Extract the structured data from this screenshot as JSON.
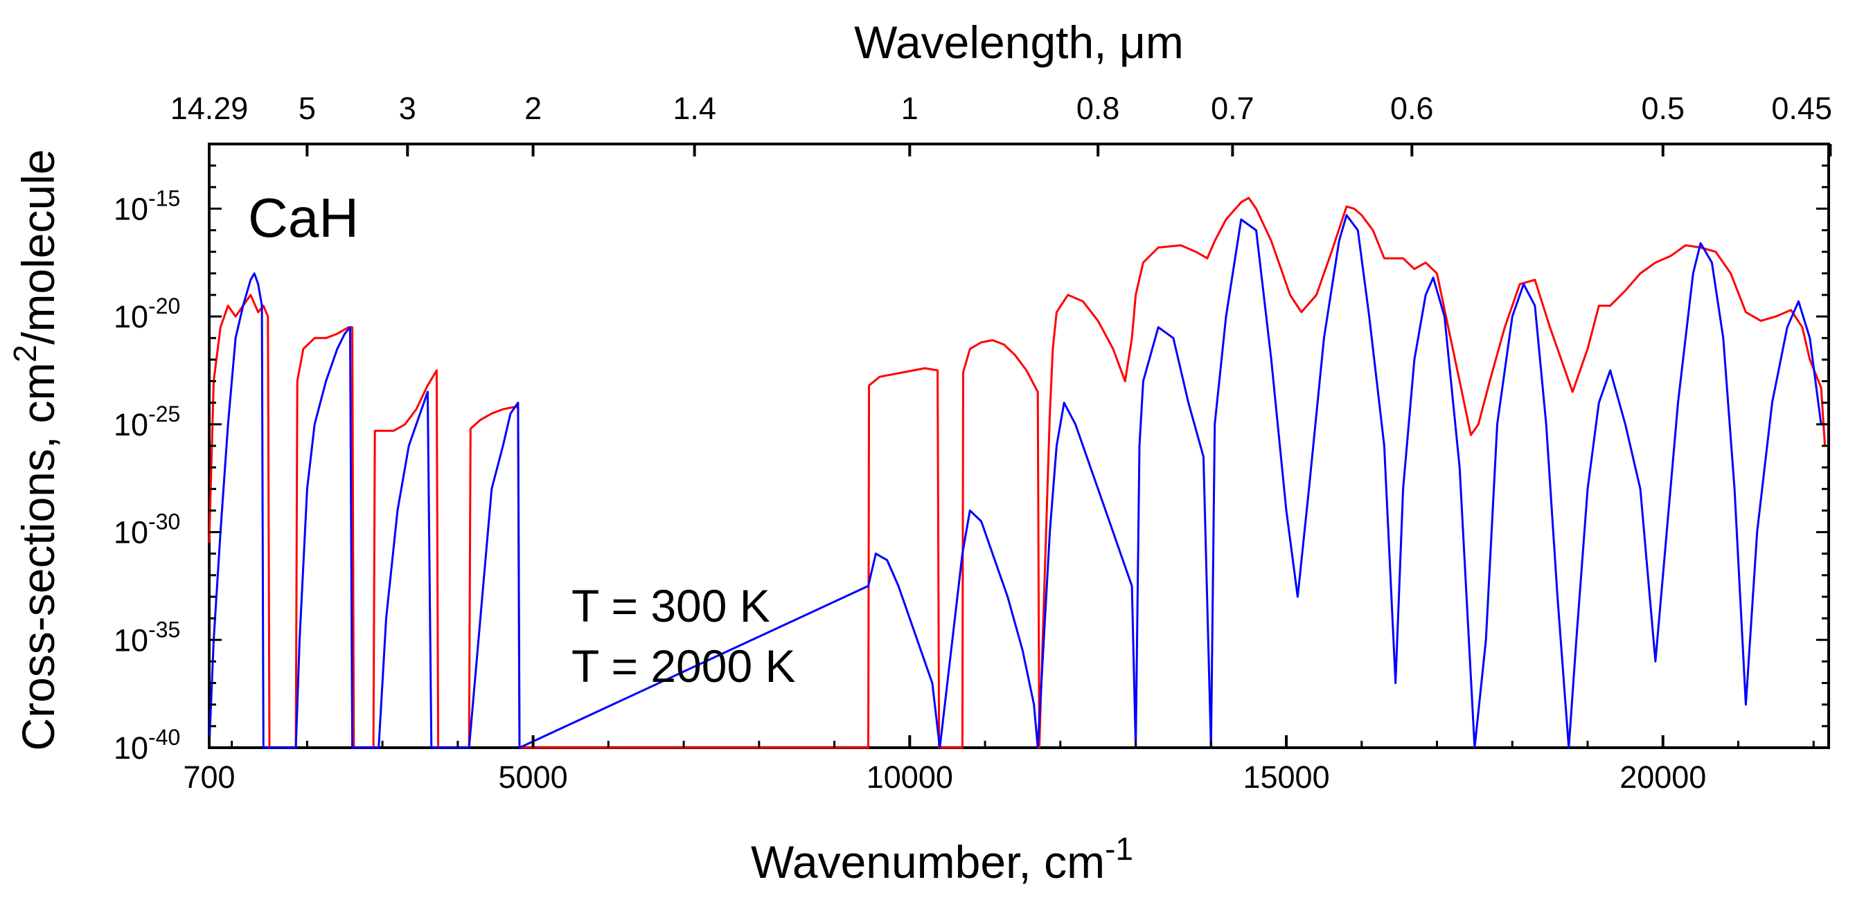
{
  "chart_data": {
    "type": "line",
    "title": "",
    "molecule_label": "CaH",
    "xlabel": {
      "base": "Wavenumber, cm",
      "sup": "-1"
    },
    "ylabel": {
      "base": "Cross-sections, cm",
      "sup": "2",
      "rest": "/molecule"
    },
    "top_xlabel": "Wavelength, μm",
    "grid": false,
    "legend_position": "center-left",
    "x_axis": {
      "lim": [
        700,
        22200
      ],
      "ticks": [
        {
          "value": 700,
          "label": "700"
        },
        {
          "value": 5000,
          "label": "5000"
        },
        {
          "value": 10000,
          "label": "10000"
        },
        {
          "value": 15000,
          "label": "15000"
        },
        {
          "value": 20000,
          "label": "20000"
        }
      ]
    },
    "top_axis": {
      "ticks": [
        {
          "value": 700,
          "label": "14.29"
        },
        {
          "value": 2000,
          "label": "5"
        },
        {
          "value": 3333,
          "label": "3"
        },
        {
          "value": 5000,
          "label": "2"
        },
        {
          "value": 7143,
          "label": "1.4"
        },
        {
          "value": 10000,
          "label": "1"
        },
        {
          "value": 12500,
          "label": "0.8"
        },
        {
          "value": 14286,
          "label": "0.7"
        },
        {
          "value": 16667,
          "label": "0.6"
        },
        {
          "value": 20000,
          "label": "0.5"
        },
        {
          "value": 22222,
          "label": "0.45"
        }
      ]
    },
    "y_axis": {
      "scale": "log",
      "lim_exp": [
        -40,
        -12
      ],
      "ticks": [
        {
          "exp": -15,
          "label": "10",
          "sup": "-15"
        },
        {
          "exp": -20,
          "label": "10",
          "sup": "-20"
        },
        {
          "exp": -25,
          "label": "10",
          "sup": "-25"
        },
        {
          "exp": -30,
          "label": "10",
          "sup": "-30"
        },
        {
          "exp": -35,
          "label": "10",
          "sup": "-35"
        },
        {
          "exp": -40,
          "label": "10",
          "sup": "-40"
        }
      ]
    },
    "series": [
      {
        "name": "T = 2000 K",
        "color": "#ff0000",
        "points": [
          [
            700,
            -30.5
          ],
          [
            760,
            -23
          ],
          [
            850,
            -20.5
          ],
          [
            950,
            -19.5
          ],
          [
            1050,
            -20
          ],
          [
            1150,
            -19.5
          ],
          [
            1250,
            -19
          ],
          [
            1350,
            -19.8
          ],
          [
            1420,
            -19.5
          ],
          [
            1480,
            -20
          ],
          [
            1500,
            -40
          ],
          [
            1850,
            -40
          ],
          [
            1870,
            -23
          ],
          [
            1950,
            -21.5
          ],
          [
            2100,
            -21
          ],
          [
            2250,
            -21
          ],
          [
            2400,
            -20.8
          ],
          [
            2550,
            -20.5
          ],
          [
            2600,
            -20.5
          ],
          [
            2620,
            -40
          ],
          [
            2880,
            -40
          ],
          [
            2900,
            -25.3
          ],
          [
            3000,
            -25.3
          ],
          [
            3150,
            -25.3
          ],
          [
            3300,
            -25
          ],
          [
            3450,
            -24.3
          ],
          [
            3600,
            -23.2
          ],
          [
            3720,
            -22.5
          ],
          [
            3740,
            -40
          ],
          [
            4150,
            -40
          ],
          [
            4170,
            -25.2
          ],
          [
            4300,
            -24.8
          ],
          [
            4450,
            -24.5
          ],
          [
            4600,
            -24.3
          ],
          [
            4750,
            -24.2
          ],
          [
            4800,
            -24.2
          ],
          [
            4820,
            -40
          ],
          [
            9450,
            -40
          ],
          [
            9460,
            -23.2
          ],
          [
            9600,
            -22.8
          ],
          [
            9750,
            -22.7
          ],
          [
            9900,
            -22.6
          ],
          [
            10050,
            -22.5
          ],
          [
            10200,
            -22.4
          ],
          [
            10370,
            -22.5
          ],
          [
            10390,
            -40
          ],
          [
            10700,
            -40
          ],
          [
            10710,
            -22.6
          ],
          [
            10800,
            -21.5
          ],
          [
            10950,
            -21.2
          ],
          [
            11100,
            -21.1
          ],
          [
            11250,
            -21.3
          ],
          [
            11400,
            -21.8
          ],
          [
            11550,
            -22.5
          ],
          [
            11700,
            -23.5
          ],
          [
            11720,
            -40
          ],
          [
            11860,
            -24.5
          ],
          [
            11900,
            -21.5
          ],
          [
            11950,
            -19.8
          ],
          [
            12100,
            -19
          ],
          [
            12300,
            -19.3
          ],
          [
            12500,
            -20.2
          ],
          [
            12700,
            -21.5
          ],
          [
            12860,
            -23
          ],
          [
            12950,
            -21
          ],
          [
            13000,
            -19
          ],
          [
            13100,
            -17.5
          ],
          [
            13300,
            -16.8
          ],
          [
            13600,
            -16.7
          ],
          [
            13800,
            -17
          ],
          [
            13950,
            -17.3
          ],
          [
            14050,
            -16.5
          ],
          [
            14200,
            -15.5
          ],
          [
            14400,
            -14.7
          ],
          [
            14500,
            -14.5
          ],
          [
            14600,
            -15
          ],
          [
            14800,
            -16.5
          ],
          [
            15050,
            -19
          ],
          [
            15200,
            -19.8
          ],
          [
            15400,
            -19
          ],
          [
            15600,
            -17
          ],
          [
            15800,
            -14.9
          ],
          [
            15900,
            -15
          ],
          [
            16000,
            -15.3
          ],
          [
            16150,
            -16
          ],
          [
            16300,
            -17.3
          ],
          [
            16550,
            -17.3
          ],
          [
            16700,
            -17.8
          ],
          [
            16850,
            -17.5
          ],
          [
            17000,
            -18
          ],
          [
            17150,
            -20.5
          ],
          [
            17300,
            -23
          ],
          [
            17450,
            -25.5
          ],
          [
            17550,
            -25
          ],
          [
            17700,
            -23
          ],
          [
            17900,
            -20.5
          ],
          [
            18100,
            -18.5
          ],
          [
            18300,
            -18.3
          ],
          [
            18500,
            -20.5
          ],
          [
            18650,
            -22
          ],
          [
            18800,
            -23.5
          ],
          [
            19000,
            -21.5
          ],
          [
            19150,
            -19.5
          ],
          [
            19300,
            -19.5
          ],
          [
            19500,
            -18.8
          ],
          [
            19700,
            -18
          ],
          [
            19900,
            -17.5
          ],
          [
            20100,
            -17.2
          ],
          [
            20300,
            -16.7
          ],
          [
            20500,
            -16.8
          ],
          [
            20700,
            -17
          ],
          [
            20900,
            -18
          ],
          [
            21100,
            -19.8
          ],
          [
            21300,
            -20.2
          ],
          [
            21500,
            -20
          ],
          [
            21700,
            -19.7
          ],
          [
            21850,
            -20.5
          ],
          [
            21950,
            -22
          ],
          [
            22100,
            -23.3
          ],
          [
            22150,
            -26
          ],
          [
            22200,
            -26
          ]
        ]
      },
      {
        "name": "T = 300 K",
        "color": "#0000ff",
        "points": [
          [
            700,
            -40
          ],
          [
            760,
            -35
          ],
          [
            850,
            -30
          ],
          [
            950,
            -25
          ],
          [
            1050,
            -21
          ],
          [
            1150,
            -19.5
          ],
          [
            1250,
            -18.3
          ],
          [
            1300,
            -18
          ],
          [
            1350,
            -18.5
          ],
          [
            1400,
            -19.5
          ],
          [
            1420,
            -40
          ],
          [
            1850,
            -40
          ],
          [
            1900,
            -35
          ],
          [
            2000,
            -28
          ],
          [
            2100,
            -25
          ],
          [
            2250,
            -23
          ],
          [
            2400,
            -21.5
          ],
          [
            2500,
            -20.8
          ],
          [
            2570,
            -20.5
          ],
          [
            2600,
            -40
          ],
          [
            2950,
            -40
          ],
          [
            3050,
            -34
          ],
          [
            3200,
            -29
          ],
          [
            3350,
            -26
          ],
          [
            3500,
            -24.5
          ],
          [
            3600,
            -23.5
          ],
          [
            3650,
            -40
          ],
          [
            4150,
            -40
          ],
          [
            4300,
            -34
          ],
          [
            4450,
            -28
          ],
          [
            4600,
            -26
          ],
          [
            4700,
            -24.5
          ],
          [
            4800,
            -24
          ],
          [
            4820,
            -40
          ],
          [
            9450,
            -32.5
          ],
          [
            9550,
            -31
          ],
          [
            9700,
            -31.3
          ],
          [
            9850,
            -32.5
          ],
          [
            10000,
            -34
          ],
          [
            10150,
            -35.5
          ],
          [
            10300,
            -37
          ],
          [
            10400,
            -40
          ],
          [
            10700,
            -31
          ],
          [
            10800,
            -29
          ],
          [
            10950,
            -29.5
          ],
          [
            11100,
            -31
          ],
          [
            11300,
            -33
          ],
          [
            11500,
            -35.5
          ],
          [
            11650,
            -38
          ],
          [
            11700,
            -40
          ],
          [
            11860,
            -30
          ],
          [
            11950,
            -26
          ],
          [
            12050,
            -24
          ],
          [
            12200,
            -25
          ],
          [
            12400,
            -27
          ],
          [
            12600,
            -29
          ],
          [
            12800,
            -31
          ],
          [
            12950,
            -32.5
          ],
          [
            13000,
            -40
          ],
          [
            13050,
            -26
          ],
          [
            13100,
            -23
          ],
          [
            13300,
            -20.5
          ],
          [
            13500,
            -21
          ],
          [
            13700,
            -24
          ],
          [
            13900,
            -26.5
          ],
          [
            14000,
            -40
          ],
          [
            14050,
            -25
          ],
          [
            14200,
            -20
          ],
          [
            14400,
            -15.5
          ],
          [
            14600,
            -16
          ],
          [
            14800,
            -22
          ],
          [
            15000,
            -29
          ],
          [
            15150,
            -33
          ],
          [
            15300,
            -28
          ],
          [
            15500,
            -21
          ],
          [
            15700,
            -16.5
          ],
          [
            15800,
            -15.3
          ],
          [
            15950,
            -16
          ],
          [
            16100,
            -20
          ],
          [
            16300,
            -26
          ],
          [
            16450,
            -37
          ],
          [
            16550,
            -28
          ],
          [
            16700,
            -22
          ],
          [
            16850,
            -19
          ],
          [
            16950,
            -18.2
          ],
          [
            17100,
            -20
          ],
          [
            17300,
            -27
          ],
          [
            17500,
            -40
          ],
          [
            17650,
            -35
          ],
          [
            17800,
            -25
          ],
          [
            18000,
            -20
          ],
          [
            18150,
            -18.5
          ],
          [
            18300,
            -19.5
          ],
          [
            18450,
            -25
          ],
          [
            18600,
            -33
          ],
          [
            18750,
            -40
          ],
          [
            18850,
            -35
          ],
          [
            19000,
            -28
          ],
          [
            19150,
            -24
          ],
          [
            19300,
            -22.5
          ],
          [
            19500,
            -25
          ],
          [
            19700,
            -28
          ],
          [
            19900,
            -36
          ],
          [
            20050,
            -30
          ],
          [
            20200,
            -24
          ],
          [
            20400,
            -18
          ],
          [
            20500,
            -16.6
          ],
          [
            20650,
            -17.5
          ],
          [
            20800,
            -21
          ],
          [
            20950,
            -28
          ],
          [
            21100,
            -38
          ],
          [
            21250,
            -30
          ],
          [
            21450,
            -24
          ],
          [
            21650,
            -20.5
          ],
          [
            21800,
            -19.3
          ],
          [
            21950,
            -21
          ],
          [
            22100,
            -25
          ],
          [
            22200,
            -25
          ]
        ]
      }
    ]
  }
}
